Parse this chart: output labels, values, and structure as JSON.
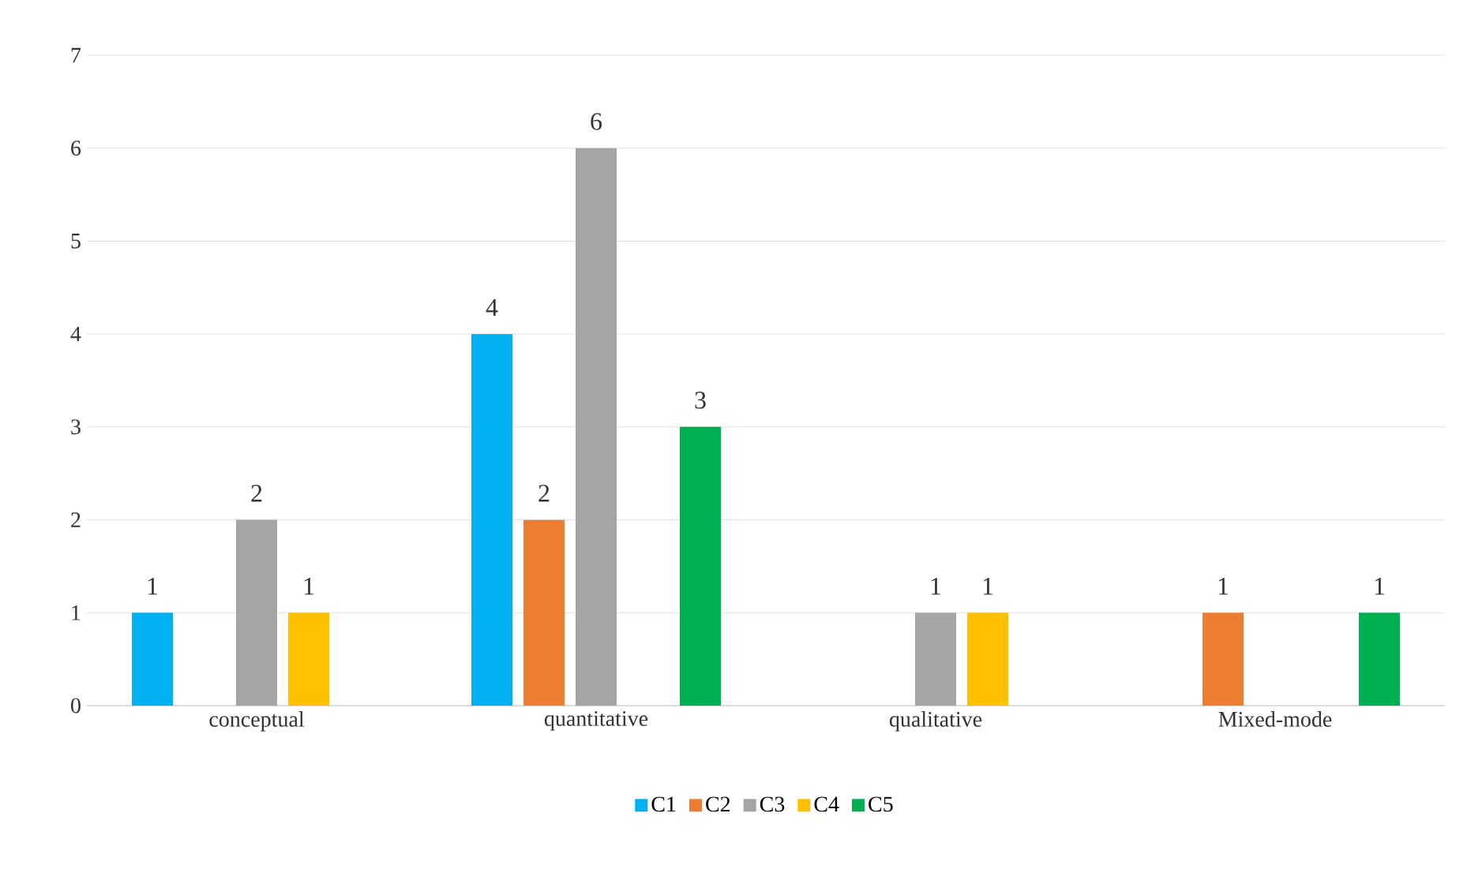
{
  "chart_data": {
    "type": "bar",
    "categories": [
      "conceptual",
      "quantitative",
      "qualitative",
      "Mixed-mode"
    ],
    "series": [
      {
        "name": "C1",
        "color": "#00b0f0",
        "values": [
          1,
          4,
          null,
          null
        ]
      },
      {
        "name": "C2",
        "color": "#ed7d31",
        "values": [
          null,
          2,
          null,
          1
        ]
      },
      {
        "name": "C3",
        "color": "#a5a5a5",
        "values": [
          2,
          6,
          1,
          null
        ]
      },
      {
        "name": "C4",
        "color": "#ffc000",
        "values": [
          1,
          null,
          1,
          null
        ]
      },
      {
        "name": "C5",
        "color": "#00b050",
        "values": [
          null,
          3,
          null,
          1
        ]
      }
    ],
    "ylim": [
      0,
      7
    ],
    "yticks": [
      0,
      1,
      2,
      3,
      4,
      5,
      6,
      7
    ],
    "grid": "y",
    "legend": "bottom",
    "data_labels": true
  }
}
